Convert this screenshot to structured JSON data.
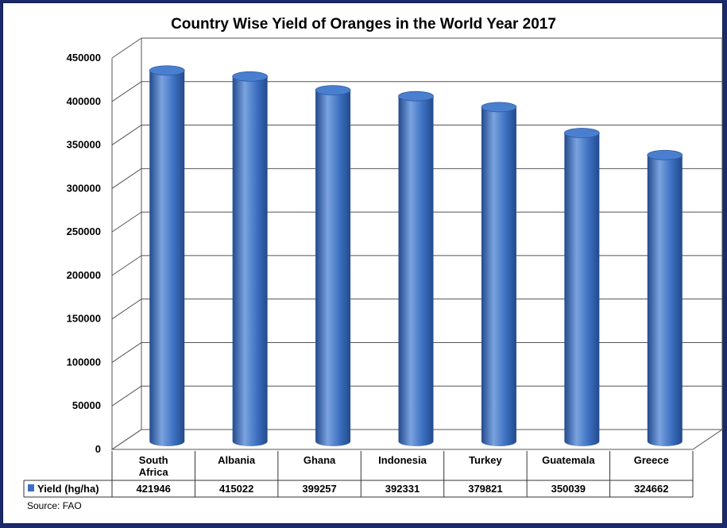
{
  "chart_data": {
    "type": "bar",
    "title": "Country Wise Yield of Oranges in the World Year 2017",
    "categories": [
      "South Africa",
      "Albania",
      "Ghana",
      "Indonesia",
      "Turkey",
      "Guatemala",
      "Greece"
    ],
    "series": [
      {
        "name": "Yield (hg/ha)",
        "values": [
          421946,
          415022,
          399257,
          392331,
          379821,
          350039,
          324662
        ]
      }
    ],
    "ylim": [
      0,
      450000
    ],
    "yticks": [
      0,
      50000,
      100000,
      150000,
      200000,
      250000,
      300000,
      350000,
      400000,
      450000
    ],
    "xlabel": "",
    "ylabel": "",
    "grid": true,
    "legend": "data-table",
    "colors": {
      "bar": "#3b6fc0",
      "bar_dark": "#234a8c",
      "bar_light": "#7aa3e0",
      "grid": "#555555"
    }
  },
  "source": "Source: FAO"
}
